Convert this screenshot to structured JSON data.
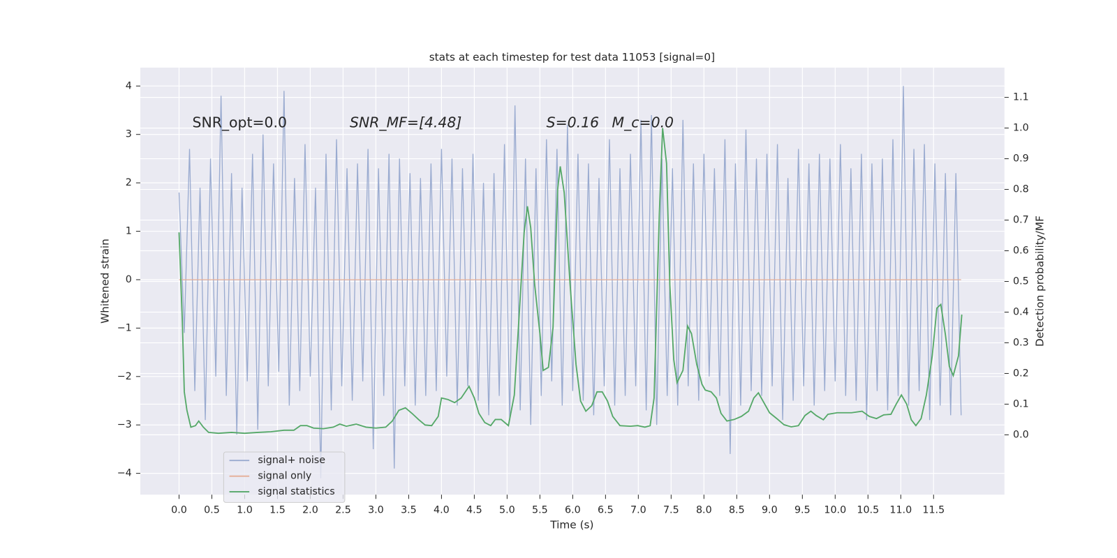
{
  "chart_data": {
    "type": "line",
    "title": "stats at each timestep for test data 11053 [signal=0]",
    "xlabel": "Time (s)",
    "ylabel": "Whitened strain",
    "y2label": "Detection probability/MF",
    "annotations": [
      "SNR_opt=0.0",
      "SNR_MF=[4.48]",
      "S=0.16",
      "M_c=0.0"
    ],
    "grid": true,
    "legend_loc": "lower left",
    "xlim": [
      -0.59,
      12.58
    ],
    "xticks": [
      {
        "value": 0,
        "label": "0.0"
      },
      0.5,
      {
        "value": 1,
        "label": "1.0"
      },
      1.5,
      {
        "value": 2,
        "label": "2.0"
      },
      2.5,
      {
        "value": 3,
        "label": "3.0"
      },
      3.5,
      {
        "value": 4,
        "label": "4.0"
      },
      4.5,
      {
        "value": 5,
        "label": "5.0"
      },
      5.5,
      {
        "value": 6,
        "label": "6.0"
      },
      6.5,
      {
        "value": 7,
        "label": "7.0"
      },
      7.5,
      {
        "value": 8,
        "label": "8.0"
      },
      8.5,
      {
        "value": 9,
        "label": "9.0"
      },
      9.5,
      {
        "value": 10,
        "label": "10.0"
      },
      10.5,
      {
        "value": 11,
        "label": "11.0"
      },
      11.5
    ],
    "ylim": [
      -4.44,
      4.38
    ],
    "yticks": [
      {
        "value": -4,
        "label": "−4"
      },
      {
        "value": -3,
        "label": "−3"
      },
      {
        "value": -2,
        "label": "−2"
      },
      {
        "value": -1,
        "label": "−1"
      },
      0,
      1,
      2,
      3,
      4
    ],
    "y2lim": [
      -0.195,
      1.197
    ],
    "y2ticks": [
      {
        "value": 0,
        "label": "0.0"
      },
      0.1,
      0.2,
      0.3,
      0.4,
      0.5,
      0.6,
      0.7,
      0.8,
      0.9,
      {
        "value": 1,
        "label": "1.0"
      },
      1.1
    ],
    "series": [
      {
        "name": "signal+ noise",
        "color": "#9aabd0",
        "x": [
          0,
          0.08,
          0.16,
          0.24,
          0.32,
          0.4,
          0.48,
          0.56,
          0.64,
          0.72,
          0.8,
          0.88,
          0.96,
          1.04,
          1.12,
          1.2,
          1.28,
          1.36,
          1.44,
          1.52,
          1.6,
          1.68,
          1.76,
          1.84,
          1.92,
          2,
          2.08,
          2.16,
          2.24,
          2.32,
          2.4,
          2.48,
          2.56,
          2.64,
          2.72,
          2.8,
          2.88,
          2.96,
          3.04,
          3.12,
          3.2,
          3.28,
          3.36,
          3.44,
          3.52,
          3.6,
          3.68,
          3.76,
          3.84,
          3.92,
          4,
          4.08,
          4.16,
          4.24,
          4.32,
          4.4,
          4.48,
          4.56,
          4.64,
          4.72,
          4.8,
          4.88,
          4.96,
          5.04,
          5.12,
          5.2,
          5.28,
          5.36,
          5.44,
          5.52,
          5.6,
          5.68,
          5.76,
          5.84,
          5.92,
          6,
          6.08,
          6.16,
          6.24,
          6.32,
          6.4,
          6.48,
          6.56,
          6.64,
          6.72,
          6.8,
          6.88,
          6.96,
          7.04,
          7.12,
          7.2,
          7.28,
          7.36,
          7.44,
          7.52,
          7.6,
          7.68,
          7.76,
          7.84,
          7.92,
          8,
          8.08,
          8.16,
          8.24,
          8.32,
          8.4,
          8.48,
          8.56,
          8.64,
          8.72,
          8.8,
          8.88,
          8.96,
          9.04,
          9.12,
          9.2,
          9.28,
          9.36,
          9.44,
          9.52,
          9.6,
          9.68,
          9.76,
          9.84,
          9.92,
          10,
          10.08,
          10.16,
          10.24,
          10.32,
          10.4,
          10.48,
          10.56,
          10.64,
          10.72,
          10.8,
          10.88,
          10.96,
          11.04,
          11.12,
          11.2,
          11.28,
          11.36,
          11.44,
          11.52,
          11.6,
          11.68,
          11.76,
          11.84,
          11.92
        ],
        "values": [
          1.8,
          -1.1,
          2.7,
          -2.3,
          1.9,
          -2.9,
          2.5,
          -2.0,
          3.8,
          -2.4,
          2.2,
          -3.2,
          1.9,
          -2.1,
          2.6,
          -3.1,
          3.0,
          -2.2,
          2.4,
          -1.9,
          3.9,
          -2.6,
          2.1,
          -2.3,
          2.8,
          -2.0,
          1.9,
          -4.1,
          2.6,
          -2.7,
          2.9,
          -2.2,
          2.3,
          -2.5,
          2.4,
          -2.1,
          2.7,
          -3.5,
          2.3,
          -2.4,
          2.6,
          -3.9,
          2.5,
          -2.2,
          2.2,
          -2.6,
          2.1,
          -2.4,
          2.4,
          -2.3,
          2.7,
          -2.0,
          2.5,
          -2.6,
          2.3,
          -2.2,
          2.6,
          -2.5,
          2.0,
          -2.8,
          2.2,
          -2.4,
          2.8,
          -2.9,
          3.6,
          -2.7,
          2.5,
          -3.0,
          2.3,
          -2.4,
          2.9,
          -2.1,
          2.7,
          -2.6,
          3.2,
          -2.3,
          2.6,
          -2.5,
          2.4,
          -2.8,
          2.1,
          -2.2,
          2.9,
          -2.6,
          2.3,
          -2.4,
          2.6,
          -2.2,
          3.3,
          -2.7,
          3.4,
          -3.0,
          2.5,
          -2.4,
          2.3,
          -2.6,
          3.3,
          -2.2,
          2.4,
          -2.5,
          2.6,
          -2.0,
          2.3,
          -2.4,
          2.9,
          -3.6,
          2.4,
          -2.6,
          3.1,
          -2.3,
          2.5,
          -2.4,
          2.6,
          -2.2,
          2.8,
          -2.9,
          2.1,
          -2.5,
          2.7,
          -2.2,
          2.4,
          -2.6,
          2.6,
          -2.3,
          2.5,
          -2.1,
          2.8,
          -2.4,
          2.3,
          -2.5,
          2.6,
          -2.9,
          2.4,
          -2.3,
          2.5,
          -2.7,
          2.9,
          -2.4,
          4.0,
          -2.6,
          2.7,
          -2.3,
          2.8,
          -2.9,
          2.4,
          -2.6,
          2.2,
          -2.8,
          2.2,
          -2.8
        ]
      },
      {
        "name": "signal only",
        "color": "#e5ae96",
        "x": [
          0,
          11.92
        ],
        "values": [
          0,
          0
        ]
      },
      {
        "name": "signal statistics",
        "color": "#55a868",
        "axis": "y2",
        "x": [
          0,
          0.05,
          0.08,
          0.12,
          0.18,
          0.25,
          0.3,
          0.37,
          0.45,
          0.6,
          0.8,
          1.0,
          1.2,
          1.4,
          1.6,
          1.75,
          1.85,
          1.95,
          2.05,
          2.2,
          2.35,
          2.45,
          2.55,
          2.7,
          2.85,
          3.0,
          3.15,
          3.25,
          3.35,
          3.45,
          3.55,
          3.65,
          3.75,
          3.85,
          3.95,
          4.0,
          4.1,
          4.2,
          4.3,
          4.42,
          4.5,
          4.57,
          4.66,
          4.75,
          4.82,
          4.91,
          5.02,
          5.11,
          5.26,
          5.31,
          5.36,
          5.42,
          5.5,
          5.55,
          5.63,
          5.7,
          5.77,
          5.81,
          5.87,
          5.96,
          6.05,
          6.12,
          6.2,
          6.29,
          6.37,
          6.45,
          6.53,
          6.61,
          6.72,
          6.88,
          6.99,
          7.1,
          7.18,
          7.24,
          7.32,
          7.37,
          7.43,
          7.48,
          7.54,
          7.59,
          7.68,
          7.75,
          7.81,
          7.89,
          7.97,
          8.02,
          8.11,
          8.19,
          8.26,
          8.35,
          8.46,
          8.57,
          8.68,
          8.76,
          8.83,
          8.89,
          9.0,
          9.11,
          9.22,
          9.33,
          9.44,
          9.54,
          9.63,
          9.71,
          9.82,
          9.89,
          10.03,
          10.25,
          10.41,
          10.52,
          10.63,
          10.74,
          10.85,
          10.93,
          11.01,
          11.09,
          11.16,
          11.23,
          11.31,
          11.39,
          11.48,
          11.55,
          11.61,
          11.68,
          11.74,
          11.8,
          11.88,
          11.93
        ],
        "values": [
          0.66,
          0.37,
          0.14,
          0.08,
          0.025,
          0.03,
          0.045,
          0.025,
          0.008,
          0.005,
          0.008,
          0.005,
          0.008,
          0.01,
          0.015,
          0.015,
          0.03,
          0.03,
          0.022,
          0.02,
          0.025,
          0.035,
          0.028,
          0.035,
          0.025,
          0.022,
          0.025,
          0.045,
          0.08,
          0.088,
          0.07,
          0.05,
          0.032,
          0.03,
          0.06,
          0.12,
          0.115,
          0.105,
          0.12,
          0.158,
          0.12,
          0.07,
          0.04,
          0.03,
          0.05,
          0.05,
          0.03,
          0.13,
          0.66,
          0.745,
          0.675,
          0.49,
          0.33,
          0.21,
          0.22,
          0.35,
          0.8,
          0.875,
          0.79,
          0.49,
          0.23,
          0.11,
          0.077,
          0.095,
          0.14,
          0.14,
          0.11,
          0.06,
          0.03,
          0.028,
          0.03,
          0.025,
          0.03,
          0.12,
          0.72,
          1.0,
          0.885,
          0.49,
          0.245,
          0.17,
          0.21,
          0.355,
          0.33,
          0.23,
          0.165,
          0.146,
          0.14,
          0.12,
          0.07,
          0.045,
          0.05,
          0.06,
          0.077,
          0.12,
          0.137,
          0.114,
          0.072,
          0.053,
          0.033,
          0.026,
          0.03,
          0.063,
          0.077,
          0.063,
          0.049,
          0.067,
          0.072,
          0.072,
          0.077,
          0.06,
          0.053,
          0.065,
          0.067,
          0.1,
          0.13,
          0.1,
          0.049,
          0.03,
          0.053,
          0.13,
          0.258,
          0.413,
          0.425,
          0.327,
          0.223,
          0.193,
          0.258,
          0.392
        ]
      }
    ]
  }
}
